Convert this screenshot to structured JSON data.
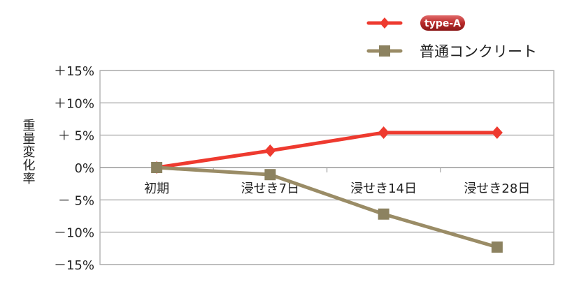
{
  "chart_data": {
    "type": "line",
    "ylabel": "重量変化率",
    "categories": [
      "初期",
      "浸せき7日",
      "浸せき14日",
      "浸せき28日"
    ],
    "y_ticks": [
      {
        "value": 15,
        "label": "＋15%"
      },
      {
        "value": 10,
        "label": "＋10%"
      },
      {
        "value": 5,
        "label": "＋ 5%"
      },
      {
        "value": 0,
        "label": "0%"
      },
      {
        "value": -5,
        "label": "－ 5%"
      },
      {
        "value": -10,
        "label": "－10%"
      },
      {
        "value": -15,
        "label": "－15%"
      }
    ],
    "ylim": [
      -15,
      15
    ],
    "grid": true,
    "legend_placement": "top-right",
    "series": [
      {
        "name": "type-A",
        "values": [
          0,
          2.6,
          5.4,
          5.4
        ],
        "color": "#ee3a2f",
        "marker": "diamond"
      },
      {
        "name": "普通コンクリート",
        "values": [
          0,
          -1.1,
          -7.2,
          -12.3
        ],
        "color": "#9a8c66",
        "marker": "square"
      }
    ]
  }
}
